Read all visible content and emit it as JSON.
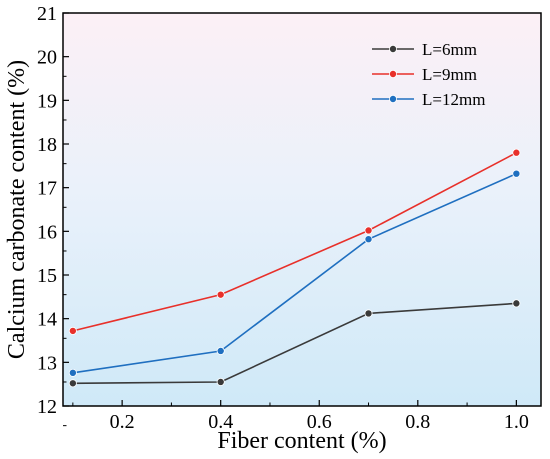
{
  "chart_data": {
    "type": "line",
    "title": "",
    "xlabel": "Fiber content (%)",
    "ylabel": "Calcium carbonate content (%)",
    "xlim": [
      0.08,
      1.05
    ],
    "ylim": [
      12,
      21
    ],
    "xticks": [
      0.2,
      0.4,
      0.6,
      0.8,
      1.0
    ],
    "xtick_labels": [
      "0.2",
      "0.4",
      "0.6",
      "0.8",
      "1.0"
    ],
    "yticks": [
      12,
      13,
      14,
      15,
      16,
      17,
      18,
      19,
      20,
      21
    ],
    "ytick_labels": [
      "12",
      "13",
      "14",
      "15",
      "16",
      "17",
      "18",
      "19",
      "20",
      "21"
    ],
    "x": [
      0.1,
      0.4,
      0.7,
      1.0
    ],
    "series": [
      {
        "name": "L=6mm",
        "color": "#3a3a3a",
        "values": [
          12.52,
          12.55,
          14.12,
          14.35
        ]
      },
      {
        "name": "L=9mm",
        "color": "#e8302a",
        "values": [
          13.72,
          14.55,
          16.02,
          17.8
        ]
      },
      {
        "name": "L=12mm",
        "color": "#1f6fc0",
        "values": [
          12.76,
          13.26,
          15.82,
          17.32
        ]
      }
    ],
    "legend_position": "top-right",
    "grid": false,
    "background": "gradient pink (top) to light blue (bottom)"
  }
}
